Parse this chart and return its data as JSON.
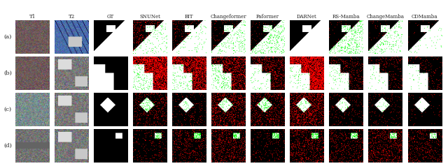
{
  "title": "",
  "row_labels": [
    "(a)",
    "(b)",
    "(c)",
    "(d)"
  ],
  "col_labels": [
    "T1",
    "T2",
    "GT",
    "SNUNet",
    "BIT",
    "Changeformer",
    "Paformer",
    "DARNet",
    "RS-Mamba",
    "ChangeMamba",
    "CDMamba"
  ],
  "n_rows": 4,
  "n_cols": 11,
  "background": "#ffffff",
  "label_color": "#222222",
  "figure_width": 6.4,
  "figure_height": 2.38
}
